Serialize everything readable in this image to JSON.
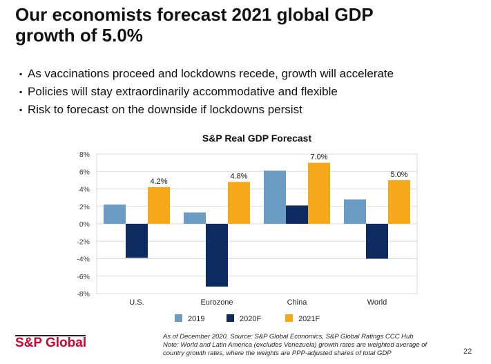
{
  "slide": {
    "title_line1": "Our economists forecast 2021 global GDP",
    "title_line2": "growth of 5.0%",
    "bullets": [
      "As vaccinations proceed and lockdowns recede, growth will accelerate",
      "Policies will stay extraordinarily accommodative and flexible",
      "Risk to forecast on the downside if lockdowns persist"
    ],
    "bullet_glyph": "▪",
    "logo": "S&P Global",
    "note_line1": "As of December 2020.  Source:  S&P Global Economics, S&P Global Ratings CCC Hub",
    "note_line2": "Note:  World and Latin America (excludes Venezuela) growth rates are weighted average of",
    "note_line3": "country growth rates, where the weights are PPP-adjusted shares of total GDP",
    "page_number": "22",
    "brand_color": "#d6002a"
  },
  "chart_data": {
    "type": "bar",
    "title": "S&P Real GDP Forecast",
    "categories": [
      "U.S.",
      "Eurozone",
      "China",
      "World"
    ],
    "series": [
      {
        "name": "2019",
        "color": "#6b9cc4",
        "values": [
          2.2,
          1.3,
          6.1,
          2.8
        ]
      },
      {
        "name": "2020F",
        "color": "#0d2b5e",
        "values": [
          -3.9,
          -7.2,
          2.1,
          -4.0
        ]
      },
      {
        "name": "2021F",
        "color": "#f5a91a",
        "values": [
          4.2,
          4.8,
          7.0,
          5.0
        ]
      }
    ],
    "data_labels": {
      "series": "2021F",
      "labels": [
        "4.2%",
        "4.8%",
        "7.0%",
        "5.0%"
      ]
    },
    "ylim": [
      -8,
      8
    ],
    "yticks": [
      8,
      6,
      4,
      2,
      0,
      -2,
      -4,
      -6,
      -8
    ],
    "ytick_labels": [
      "8%",
      "6%",
      "4%",
      "2%",
      "0%",
      "-2%",
      "-4%",
      "-6%",
      "-8%"
    ],
    "grid": true,
    "legend": "bottom"
  }
}
